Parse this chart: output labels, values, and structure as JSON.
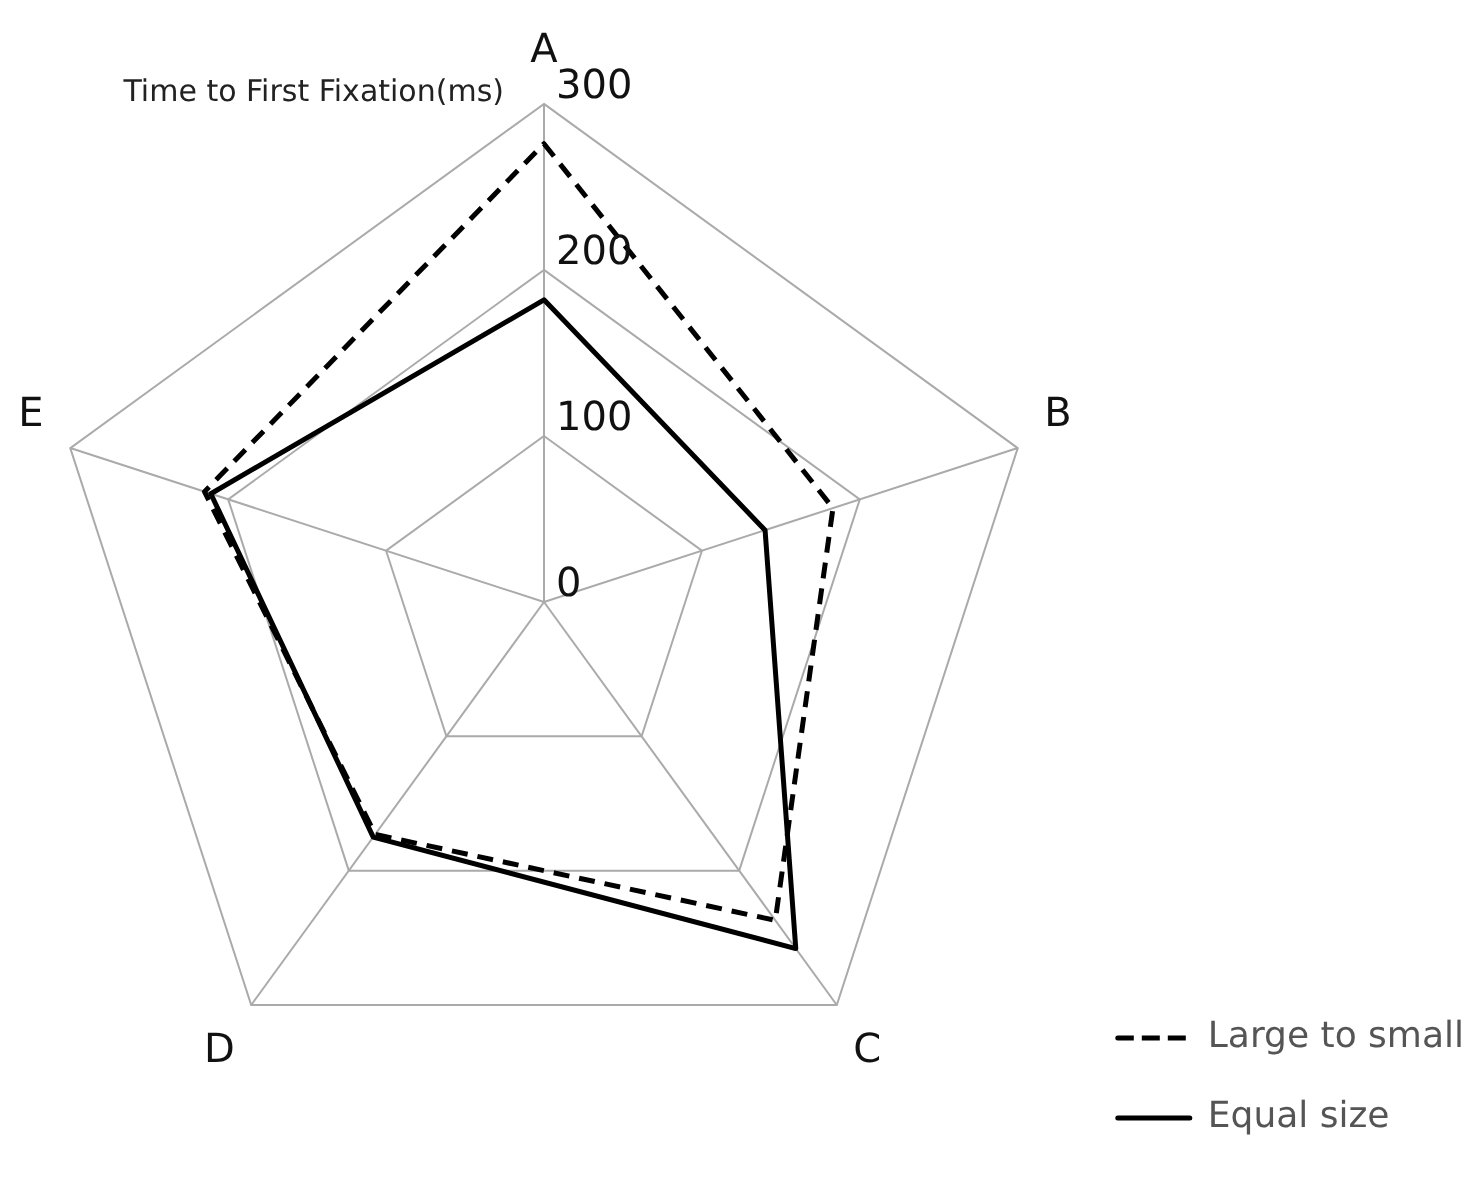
{
  "chart_data": {
    "type": "radar",
    "ylabel": "Time to First Fixation(ms)",
    "categories": [
      "A",
      "B",
      "C",
      "D",
      "E"
    ],
    "series": [
      {
        "name": "Large to small",
        "color": "#000000",
        "line_style": "dashed",
        "values": [
          276,
          183,
          237,
          173,
          215
        ]
      },
      {
        "name": "Equal size",
        "color": "#000000",
        "line_style": "solid",
        "values": [
          182,
          140,
          258,
          175,
          211
        ]
      }
    ],
    "ylim": [
      0,
      300
    ],
    "yticks": [
      0,
      100,
      200,
      300
    ],
    "grid": true,
    "legend": "bottom right",
    "marker": "none"
  }
}
